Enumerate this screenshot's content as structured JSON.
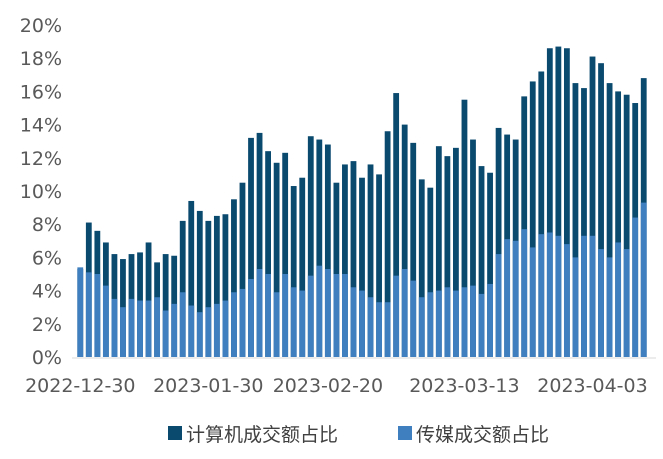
{
  "chart_data": {
    "type": "bar",
    "ylim": [
      0,
      20
    ],
    "y_ticks": [
      "0%",
      "2%",
      "4%",
      "6%",
      "8%",
      "10%",
      "12%",
      "14%",
      "16%",
      "18%",
      "20%"
    ],
    "x_tick_labels": [
      {
        "index": 0,
        "label": "2022-12-30"
      },
      {
        "index": 15,
        "label": "2023-01-30"
      },
      {
        "index": 29,
        "label": "2023-02-20"
      },
      {
        "index": 45,
        "label": "2023-03-13"
      },
      {
        "index": 60,
        "label": "2023-04-03"
      }
    ],
    "grid": false,
    "legend_position": "bottom",
    "series": [
      {
        "name": "计算机成交额占比",
        "color": "#0b4a6f",
        "values": [
          5.3,
          8.1,
          7.6,
          6.9,
          6.2,
          5.9,
          6.2,
          6.3,
          6.9,
          5.7,
          6.2,
          6.1,
          8.2,
          9.4,
          8.8,
          8.2,
          8.5,
          8.6,
          9.5,
          10.5,
          13.2,
          13.5,
          12.4,
          11.7,
          12.3,
          10.3,
          10.8,
          13.3,
          13.1,
          12.8,
          10.5,
          11.6,
          11.8,
          10.8,
          11.6,
          11.0,
          13.6,
          15.9,
          14.0,
          12.9,
          10.7,
          10.2,
          12.7,
          12.1,
          12.6,
          15.5,
          13.1,
          11.5,
          11.1,
          13.8,
          13.4,
          13.1,
          15.7,
          16.6,
          17.2,
          18.6,
          18.7,
          18.6,
          16.5,
          16.2,
          18.1,
          17.7,
          16.5,
          16.0,
          15.8,
          15.3,
          16.8
        ]
      },
      {
        "name": "传媒成交额占比",
        "color": "#3f7fbf",
        "values": [
          5.4,
          5.1,
          5.0,
          4.3,
          3.5,
          3.0,
          3.5,
          3.4,
          3.4,
          3.6,
          2.8,
          3.2,
          3.9,
          3.1,
          2.7,
          3.0,
          3.2,
          3.4,
          3.9,
          4.1,
          4.7,
          5.3,
          5.0,
          3.9,
          5.0,
          4.2,
          4.0,
          4.9,
          5.5,
          5.3,
          5.0,
          5.0,
          4.2,
          4.0,
          3.6,
          3.3,
          3.3,
          4.9,
          5.3,
          4.6,
          3.6,
          3.9,
          4.0,
          4.2,
          4.0,
          4.2,
          4.3,
          3.8,
          4.4,
          6.2,
          7.1,
          7.0,
          7.7,
          6.6,
          7.4,
          7.5,
          7.3,
          6.8,
          6.0,
          7.3,
          7.3,
          6.5,
          6.0,
          6.9,
          6.5,
          8.4,
          9.3
        ]
      }
    ]
  }
}
